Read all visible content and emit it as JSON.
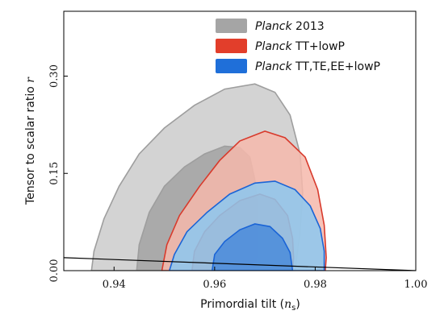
{
  "chart_data": {
    "type": "area",
    "xlabel": "Primordial tilt",
    "xlabel_symbol": "n",
    "xlabel_subscript": "s",
    "ylabel": "Tensor to scalar ratio",
    "ylabel_symbol": "r",
    "xlim": [
      0.93,
      1.0
    ],
    "ylim": [
      0.0,
      0.4
    ],
    "xticks": [
      "0.94",
      "0.96",
      "0.98",
      "1.00"
    ],
    "yticks": [
      "0.00",
      "0.15",
      "0.30"
    ],
    "legend_position": "top-right",
    "series": [
      {
        "name": "Planck 2013",
        "name_italic": "Planck",
        "name_rest": " 2013",
        "color_outer": "#d3d3d3",
        "color_inner": "#a5a5a5",
        "edge_color": "#9e9e9e",
        "contour_68": [
          [
            0.9445,
            0.0
          ],
          [
            0.945,
            0.04
          ],
          [
            0.947,
            0.09
          ],
          [
            0.95,
            0.13
          ],
          [
            0.954,
            0.16
          ],
          [
            0.958,
            0.18
          ],
          [
            0.962,
            0.192
          ],
          [
            0.965,
            0.19
          ],
          [
            0.967,
            0.175
          ],
          [
            0.968,
            0.14
          ],
          [
            0.9685,
            0.1
          ],
          [
            0.9685,
            0.06
          ],
          [
            0.9683,
            0.02
          ],
          [
            0.968,
            0.0
          ]
        ],
        "contour_95": [
          [
            0.9355,
            0.0
          ],
          [
            0.936,
            0.03
          ],
          [
            0.938,
            0.08
          ],
          [
            0.941,
            0.13
          ],
          [
            0.945,
            0.18
          ],
          [
            0.95,
            0.22
          ],
          [
            0.956,
            0.255
          ],
          [
            0.962,
            0.28
          ],
          [
            0.968,
            0.288
          ],
          [
            0.972,
            0.275
          ],
          [
            0.975,
            0.24
          ],
          [
            0.977,
            0.18
          ],
          [
            0.9775,
            0.12
          ],
          [
            0.977,
            0.06
          ],
          [
            0.976,
            0.0
          ]
        ]
      },
      {
        "name": "Planck TT+lowP",
        "name_italic": "Planck",
        "name_rest": " TT+lowP",
        "color_outer": "#f6b8ac",
        "color_inner": "#e35a47",
        "edge_color": "#d83a2c",
        "contour_68": [
          [
            0.9555,
            0.0
          ],
          [
            0.956,
            0.03
          ],
          [
            0.958,
            0.06
          ],
          [
            0.961,
            0.085
          ],
          [
            0.965,
            0.108
          ],
          [
            0.969,
            0.118
          ],
          [
            0.972,
            0.11
          ],
          [
            0.9745,
            0.085
          ],
          [
            0.9755,
            0.05
          ],
          [
            0.9757,
            0.02
          ],
          [
            0.9755,
            0.0
          ]
        ],
        "contour_95": [
          [
            0.9495,
            0.0
          ],
          [
            0.9505,
            0.04
          ],
          [
            0.953,
            0.085
          ],
          [
            0.957,
            0.13
          ],
          [
            0.961,
            0.17
          ],
          [
            0.965,
            0.2
          ],
          [
            0.97,
            0.215
          ],
          [
            0.974,
            0.205
          ],
          [
            0.978,
            0.175
          ],
          [
            0.9805,
            0.125
          ],
          [
            0.9818,
            0.07
          ],
          [
            0.9822,
            0.02
          ],
          [
            0.982,
            0.0
          ]
        ]
      },
      {
        "name": "Planck TT,TE,EE+lowP",
        "name_italic": "Planck",
        "name_rest": " TT,TE,EE+lowP",
        "color_outer": "#8cc8f0",
        "color_inner": "#1f6fd9",
        "edge_color": "#1a64d6",
        "contour_68": [
          [
            0.9595,
            0.0
          ],
          [
            0.96,
            0.025
          ],
          [
            0.962,
            0.045
          ],
          [
            0.965,
            0.063
          ],
          [
            0.968,
            0.072
          ],
          [
            0.971,
            0.068
          ],
          [
            0.9735,
            0.05
          ],
          [
            0.975,
            0.028
          ],
          [
            0.9755,
            0.0
          ]
        ],
        "contour_95": [
          [
            0.951,
            0.0
          ],
          [
            0.952,
            0.025
          ],
          [
            0.9545,
            0.06
          ],
          [
            0.9585,
            0.09
          ],
          [
            0.963,
            0.118
          ],
          [
            0.968,
            0.135
          ],
          [
            0.972,
            0.138
          ],
          [
            0.976,
            0.125
          ],
          [
            0.979,
            0.1
          ],
          [
            0.981,
            0.065
          ],
          [
            0.9818,
            0.03
          ],
          [
            0.9818,
            0.0
          ]
        ]
      }
    ],
    "line": {
      "x": [
        0.93,
        1.0
      ],
      "y": [
        0.02,
        0.0
      ],
      "color": "#000000"
    }
  }
}
